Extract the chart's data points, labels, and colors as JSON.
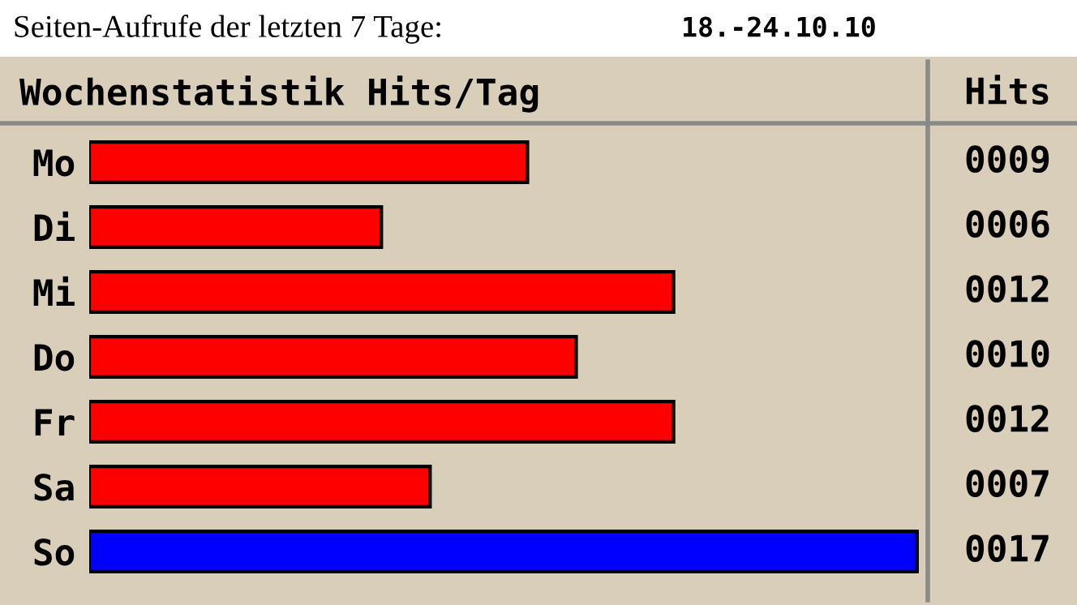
{
  "chart_data": {
    "type": "bar",
    "orientation": "horizontal",
    "title": "Seiten-Aufrufe der letzten 7 Tage:",
    "subtitle": "18.-24.10.10",
    "annotations": [
      "Wochenstatistik Hits/Tag",
      "Hits"
    ],
    "categories": [
      "Mo",
      "Di",
      "Mi",
      "Do",
      "Fr",
      "Sa",
      "So"
    ],
    "values": [
      9,
      6,
      12,
      10,
      12,
      7,
      17
    ],
    "colors": [
      "#ff0000",
      "#ff0000",
      "#ff0000",
      "#ff0000",
      "#ff0000",
      "#ff0000",
      "#0000ff"
    ],
    "value_labels": [
      "0009",
      "0006",
      "0012",
      "0010",
      "0012",
      "0007",
      "0017"
    ],
    "grid": false,
    "legend": false
  }
}
